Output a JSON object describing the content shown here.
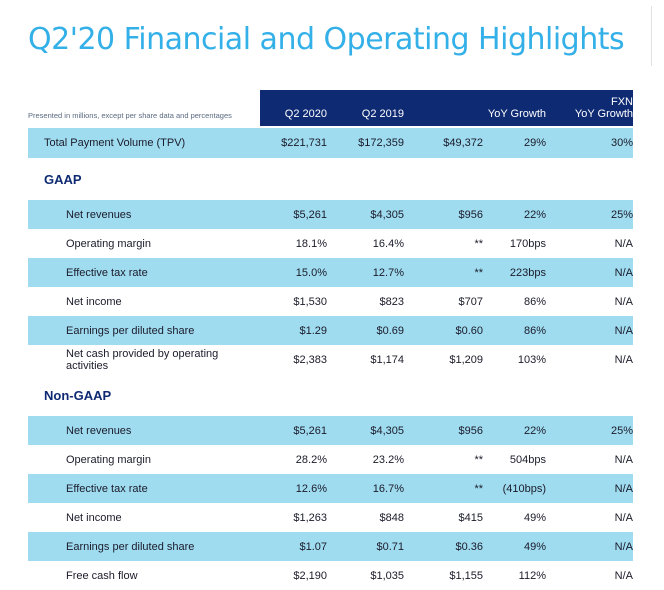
{
  "title": "Q2'20 Financial and Operating Highlights",
  "note": "Presented in millions, except per share data and percentages",
  "columns": {
    "q2_2020": "Q2 2020",
    "q2_2019": "Q2 2019",
    "yoy_growth": "YoY Growth",
    "fxn_top": "FXN",
    "fxn_bottom": "YoY Growth"
  },
  "tpv": {
    "label": "Total Payment Volume (TPV)",
    "q2_2020": "$221,731",
    "q2_2019": "$172,359",
    "yoy_abs": "$49,372",
    "yoy_pct": "29%",
    "fxn": "30%"
  },
  "gaap": {
    "heading": "GAAP",
    "rows": [
      {
        "label": "Net revenues",
        "q2_2020": "$5,261",
        "q2_2019": "$4,305",
        "yoy_abs": "$956",
        "yoy_pct": "22%",
        "fxn": "25%"
      },
      {
        "label": "Operating margin",
        "q2_2020": "18.1%",
        "q2_2019": "16.4%",
        "yoy_abs": "**",
        "yoy_pct": "170bps",
        "fxn": "N/A"
      },
      {
        "label": "Effective tax rate",
        "q2_2020": "15.0%",
        "q2_2019": "12.7%",
        "yoy_abs": "**",
        "yoy_pct": "223bps",
        "fxn": "N/A"
      },
      {
        "label": "Net income",
        "q2_2020": "$1,530",
        "q2_2019": "$823",
        "yoy_abs": "$707",
        "yoy_pct": "86%",
        "fxn": "N/A"
      },
      {
        "label": "Earnings per diluted share",
        "q2_2020": "$1.29",
        "q2_2019": "$0.69",
        "yoy_abs": "$0.60",
        "yoy_pct": "86%",
        "fxn": "N/A"
      },
      {
        "label": "Net cash provided by operating activities",
        "q2_2020": "$2,383",
        "q2_2019": "$1,174",
        "yoy_abs": "$1,209",
        "yoy_pct": "103%",
        "fxn": "N/A"
      }
    ]
  },
  "non_gaap": {
    "heading": "Non-GAAP",
    "rows": [
      {
        "label": "Net revenues",
        "q2_2020": "$5,261",
        "q2_2019": "$4,305",
        "yoy_abs": "$956",
        "yoy_pct": "22%",
        "fxn": "25%"
      },
      {
        "label": "Operating margin",
        "q2_2020": "28.2%",
        "q2_2019": "23.2%",
        "yoy_abs": "**",
        "yoy_pct": "504bps",
        "fxn": "N/A"
      },
      {
        "label": "Effective tax rate",
        "q2_2020": "12.6%",
        "q2_2019": "16.7%",
        "yoy_abs": "**",
        "yoy_pct": "(410bps)",
        "fxn": "N/A"
      },
      {
        "label": "Net income",
        "q2_2020": "$1,263",
        "q2_2019": "$848",
        "yoy_abs": "$415",
        "yoy_pct": "49%",
        "fxn": "N/A"
      },
      {
        "label": "Earnings per diluted share",
        "q2_2020": "$1.07",
        "q2_2019": "$0.71",
        "yoy_abs": "$0.36",
        "yoy_pct": "49%",
        "fxn": "N/A"
      },
      {
        "label": "Free cash flow",
        "q2_2020": "$2,190",
        "q2_2019": "$1,035",
        "yoy_abs": "$1,155",
        "yoy_pct": "112%",
        "fxn": "N/A"
      }
    ]
  },
  "colors": {
    "title": "#34b0e8",
    "header_band": "#0e2a73",
    "row_highlight": "#9fdcf0",
    "section_heading": "#0e2a73"
  }
}
